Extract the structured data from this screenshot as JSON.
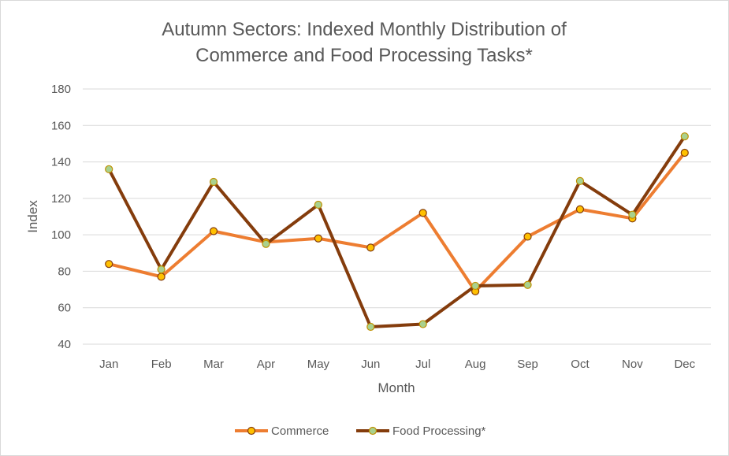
{
  "chart_data": {
    "type": "line",
    "title": [
      "Autumn Sectors: Indexed Monthly Distribution of",
      "Commerce and Food Processing Tasks*"
    ],
    "xlabel": "Month",
    "ylabel": "Index",
    "categories": [
      "Jan",
      "Feb",
      "Mar",
      "Apr",
      "May",
      "Jun",
      "Jul",
      "Aug",
      "Sep",
      "Oct",
      "Nov",
      "Dec"
    ],
    "ylim": [
      40,
      180
    ],
    "yticks": [
      40,
      60,
      80,
      100,
      120,
      140,
      160,
      180
    ],
    "grid": true,
    "legend_position": "bottom",
    "series": [
      {
        "name": "Commerce",
        "color": "#ed7d31",
        "marker_fill": "#ffc000",
        "marker_edge": "#843c0c",
        "values": [
          84,
          77,
          102,
          96,
          98,
          93,
          112,
          69,
          99,
          114,
          109,
          145
        ]
      },
      {
        "name": "Food Processing*",
        "color": "#843c0c",
        "marker_fill": "#a9d18e",
        "marker_edge": "#bf9000",
        "values": [
          136,
          81,
          129,
          95,
          116.5,
          49.5,
          51,
          72,
          72.5,
          129.5,
          111,
          154
        ]
      }
    ]
  }
}
